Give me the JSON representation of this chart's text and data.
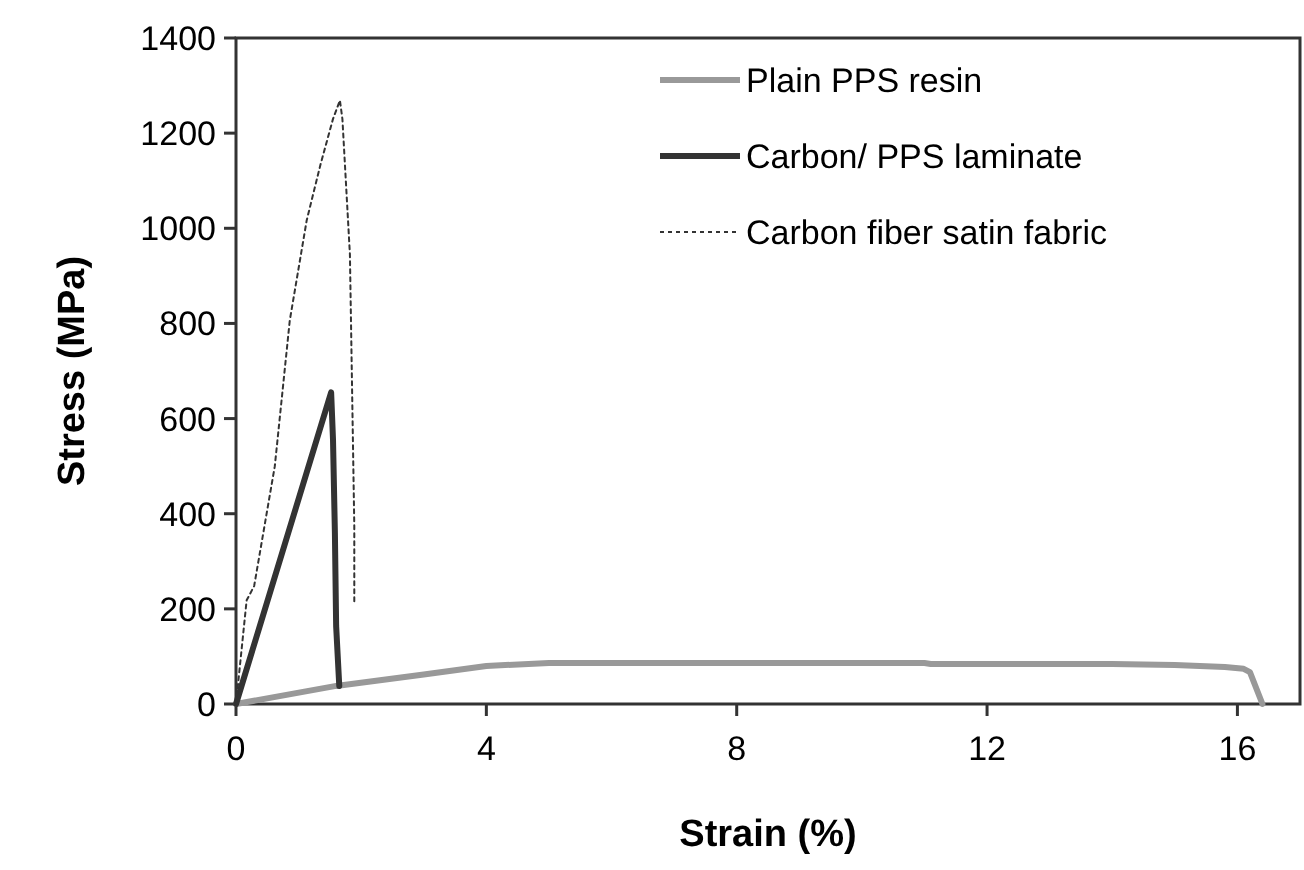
{
  "chart_data": {
    "type": "line",
    "xlabel": "Strain (%)",
    "ylabel": "Stress (MPa)",
    "xlim": [
      0,
      17
    ],
    "ylim": [
      0,
      1400
    ],
    "xticks": [
      0,
      4,
      8,
      12,
      16
    ],
    "yticks": [
      0,
      200,
      400,
      600,
      800,
      1000,
      1200,
      1400
    ],
    "grid": false,
    "legend": "top right",
    "marker": "none",
    "series": [
      {
        "name": "Plain PPS resin",
        "color": "#999999",
        "line_style": "solid",
        "x": [
          0,
          1.6,
          3,
          4,
          5,
          8,
          11,
          11.1,
          14,
          15,
          15.8,
          16.1,
          16.2,
          16.4
        ],
        "values": [
          0,
          38,
          62,
          80,
          86,
          86,
          86,
          84,
          84,
          82,
          78,
          74,
          67,
          0
        ]
      },
      {
        "name": "Carbon/ PPS laminate",
        "color": "#333333",
        "line_style": "solid",
        "x": [
          0,
          1.52,
          1.55,
          1.58,
          1.6,
          1.65
        ],
        "values": [
          0,
          655,
          555,
          360,
          164,
          38
        ]
      },
      {
        "name": "Carbon fiber satin fabric",
        "color": "#333333",
        "line_style": "dotted",
        "x": [
          0,
          0.17,
          0.29,
          0.62,
          0.86,
          1.13,
          1.35,
          1.55,
          1.66,
          1.7,
          1.82,
          1.89,
          1.89
        ],
        "values": [
          0,
          218,
          248,
          500,
          807,
          1017,
          1134,
          1230,
          1269,
          1230,
          945,
          374,
          210
        ]
      }
    ]
  }
}
